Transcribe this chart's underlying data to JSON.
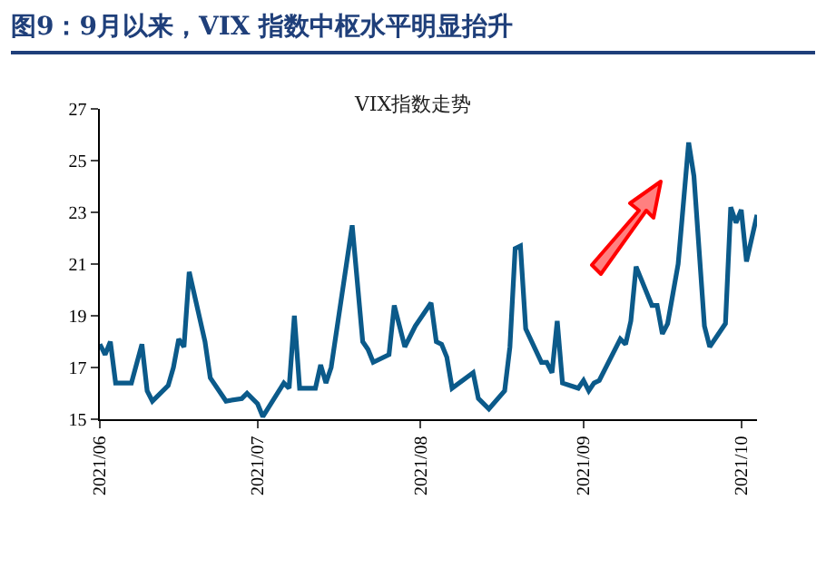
{
  "chart_data": {
    "type": "line",
    "title": "图9：9月以来，VIX 指数中枢水平明显抬升",
    "subtitle": "VIX指数走势",
    "x": [
      "2021-06-01",
      "2021-06-02",
      "2021-06-03",
      "2021-06-04",
      "2021-06-07",
      "2021-06-09",
      "2021-06-10",
      "2021-06-11",
      "2021-06-14",
      "2021-06-15",
      "2021-06-16",
      "2021-06-17",
      "2021-06-18",
      "2021-06-21",
      "2021-06-22",
      "2021-06-25",
      "2021-06-28",
      "2021-06-29",
      "2021-07-01",
      "2021-07-02",
      "2021-07-06",
      "2021-07-07",
      "2021-07-08",
      "2021-07-09",
      "2021-07-12",
      "2021-07-13",
      "2021-07-14",
      "2021-07-15",
      "2021-07-19",
      "2021-07-21",
      "2021-07-22",
      "2021-07-23",
      "2021-07-26",
      "2021-07-27",
      "2021-07-29",
      "2021-07-31",
      "2021-08-03",
      "2021-08-04",
      "2021-08-05",
      "2021-08-06",
      "2021-08-07",
      "2021-08-11",
      "2021-08-12",
      "2021-08-14",
      "2021-08-17",
      "2021-08-18",
      "2021-08-19",
      "2021-08-20",
      "2021-08-21",
      "2021-08-24",
      "2021-08-25",
      "2021-08-26",
      "2021-08-27",
      "2021-08-28",
      "2021-08-31",
      "2021-09-01",
      "2021-09-02",
      "2021-09-03",
      "2021-09-04",
      "2021-09-08",
      "2021-09-09",
      "2021-09-10",
      "2021-09-11",
      "2021-09-14",
      "2021-09-15",
      "2021-09-16",
      "2021-09-17",
      "2021-09-19",
      "2021-09-21",
      "2021-09-22",
      "2021-09-24",
      "2021-09-25",
      "2021-09-28",
      "2021-09-29",
      "2021-09-30",
      "2021-10-01",
      "2021-10-02",
      "2021-10-04"
    ],
    "series": [
      {
        "color": "#0b5a8a",
        "values": [
          17.9,
          17.5,
          18.0,
          16.4,
          16.4,
          17.9,
          16.1,
          15.7,
          16.3,
          17.0,
          18.1,
          17.8,
          20.7,
          18.0,
          16.6,
          15.7,
          15.8,
          16.0,
          15.6,
          15.1,
          16.4,
          16.2,
          19.0,
          16.2,
          16.2,
          17.1,
          16.4,
          17.0,
          22.5,
          18.0,
          17.7,
          17.2,
          17.5,
          19.4,
          17.8,
          18.6,
          19.5,
          18.0,
          17.9,
          17.4,
          16.2,
          16.8,
          15.8,
          15.4,
          16.1,
          17.8,
          21.6,
          21.7,
          18.5,
          17.2,
          17.2,
          16.8,
          18.8,
          16.4,
          16.2,
          16.5,
          16.1,
          16.4,
          16.5,
          18.1,
          17.9,
          18.8,
          20.9,
          19.4,
          19.4,
          18.3,
          18.7,
          21.0,
          25.7,
          24.4,
          18.6,
          17.8,
          18.7,
          23.2,
          22.6,
          23.1,
          21.1,
          22.9
        ]
      }
    ],
    "xlim": [
      "2021-06-01",
      "2021-10-04"
    ],
    "xticks": [
      {
        "value": "2021-06-01",
        "label": "2021/06"
      },
      {
        "value": "2021-07-01",
        "label": "2021/07"
      },
      {
        "value": "2021-08-01",
        "label": "2021/08"
      },
      {
        "value": "2021-09-01",
        "label": "2021/09"
      },
      {
        "value": "2021-10-01",
        "label": "2021/10"
      }
    ],
    "ylim": [
      15,
      27
    ],
    "yticks": [
      15,
      17,
      19,
      21,
      23,
      25,
      27
    ],
    "marker": "none",
    "line_style": "solid"
  }
}
